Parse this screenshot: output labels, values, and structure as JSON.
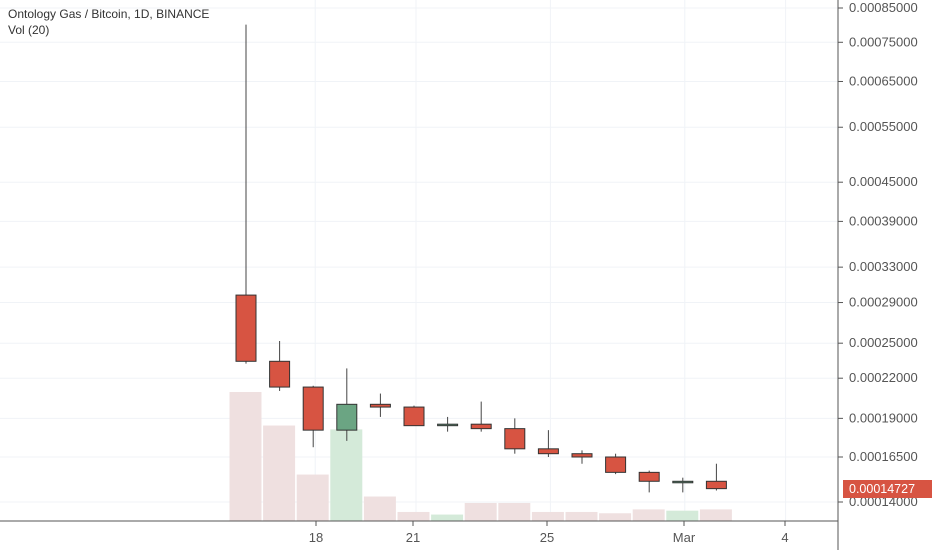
{
  "chart_data": {
    "type": "candlestick",
    "title": "Ontology Gas / Bitcoin, 1D, BINANCE",
    "indicator": "Vol (20)",
    "y_axis": {
      "scale": "log",
      "ticks": [
        0.00085,
        0.00075,
        0.00065,
        0.00055,
        0.00045,
        0.00039,
        0.00033,
        0.00029,
        0.00025,
        0.00022,
        0.00019,
        0.000165,
        0.00014
      ],
      "tick_labels": [
        "0.00085000",
        "0.00075000",
        "0.00065000",
        "0.00055000",
        "0.00045000",
        "0.00039000",
        "0.00033000",
        "0.00029000",
        "0.00025000",
        "0.00022000",
        "0.00019000",
        "0.00016500",
        "0.00014000"
      ]
    },
    "x_axis": {
      "tick_labels": [
        "18",
        "21",
        "25",
        "Mar",
        "4"
      ]
    },
    "current_price": "0.00014727",
    "candles": [
      {
        "open": 0.000298,
        "high": 0.0008,
        "low": 0.000232,
        "close": 0.000234,
        "volume": 100
      },
      {
        "open": 0.000234,
        "high": 0.000252,
        "low": 0.00021,
        "close": 0.000213,
        "volume": 74
      },
      {
        "open": 0.000213,
        "high": 0.000214,
        "low": 0.000171,
        "close": 0.000182,
        "volume": 36
      },
      {
        "open": 0.000182,
        "high": 0.000228,
        "low": 0.000175,
        "close": 0.0002,
        "volume": 71
      },
      {
        "open": 0.0002,
        "high": 0.000208,
        "low": 0.000191,
        "close": 0.000198,
        "volume": 19
      },
      {
        "open": 0.000198,
        "high": 0.000199,
        "low": 0.000185,
        "close": 0.000185,
        "volume": 7
      },
      {
        "open": 0.000185,
        "high": 0.000191,
        "low": 0.000181,
        "close": 0.000186,
        "volume": 5
      },
      {
        "open": 0.000186,
        "high": 0.000202,
        "low": 0.000181,
        "close": 0.000183,
        "volume": 14
      },
      {
        "open": 0.000183,
        "high": 0.00019,
        "low": 0.000167,
        "close": 0.00017,
        "volume": 14
      },
      {
        "open": 0.00017,
        "high": 0.000182,
        "low": 0.000165,
        "close": 0.000167,
        "volume": 7
      },
      {
        "open": 0.000167,
        "high": 0.000169,
        "low": 0.000161,
        "close": 0.000165,
        "volume": 7
      },
      {
        "open": 0.000165,
        "high": 0.000167,
        "low": 0.000155,
        "close": 0.000156,
        "volume": 6
      },
      {
        "open": 0.000156,
        "high": 0.000157,
        "low": 0.000145,
        "close": 0.000151,
        "volume": 9
      },
      {
        "open": 0.000151,
        "high": 0.000153,
        "low": 0.000145,
        "close": 0.000151,
        "volume": 8
      },
      {
        "open": 0.000151,
        "high": 0.000161,
        "low": 0.000146,
        "close": 0.000147,
        "volume": 9
      }
    ],
    "colors": {
      "up": "#6ba583",
      "down": "#d75442",
      "up_volume": "#d4ead9",
      "down_volume": "#efe0e0",
      "price_label": "#d75442",
      "axis_text": "#555555"
    }
  }
}
